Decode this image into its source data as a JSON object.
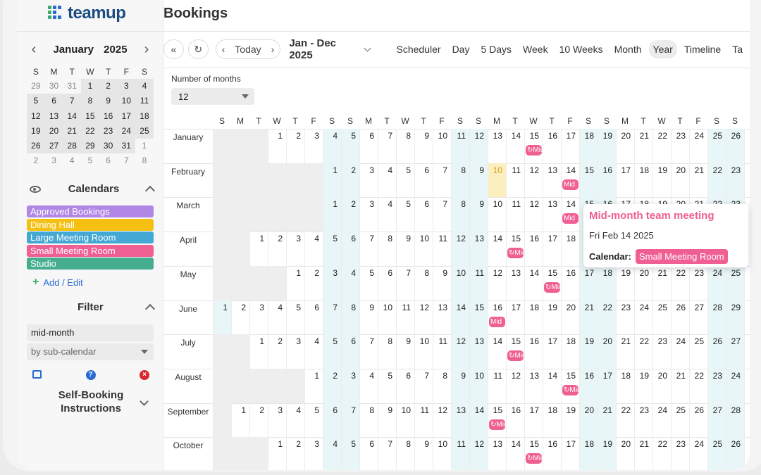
{
  "app": {
    "logo_text": "teamup",
    "page_title": "Bookings"
  },
  "mini_calendar": {
    "month": "January",
    "year": "2025",
    "dow": [
      "S",
      "M",
      "T",
      "W",
      "T",
      "F",
      "S"
    ],
    "weeks": [
      [
        {
          "d": "29",
          "o": true
        },
        {
          "d": "30",
          "o": true
        },
        {
          "d": "31",
          "o": true
        },
        {
          "d": "1"
        },
        {
          "d": "2"
        },
        {
          "d": "3"
        },
        {
          "d": "4"
        }
      ],
      [
        {
          "d": "5"
        },
        {
          "d": "6"
        },
        {
          "d": "7"
        },
        {
          "d": "8"
        },
        {
          "d": "9"
        },
        {
          "d": "10"
        },
        {
          "d": "11"
        }
      ],
      [
        {
          "d": "12"
        },
        {
          "d": "13"
        },
        {
          "d": "14"
        },
        {
          "d": "15"
        },
        {
          "d": "16"
        },
        {
          "d": "17"
        },
        {
          "d": "18"
        }
      ],
      [
        {
          "d": "19"
        },
        {
          "d": "20"
        },
        {
          "d": "21"
        },
        {
          "d": "22"
        },
        {
          "d": "23"
        },
        {
          "d": "24"
        },
        {
          "d": "25"
        }
      ],
      [
        {
          "d": "26"
        },
        {
          "d": "27"
        },
        {
          "d": "28"
        },
        {
          "d": "29"
        },
        {
          "d": "30"
        },
        {
          "d": "31"
        },
        {
          "d": "1",
          "o": true
        }
      ],
      [
        {
          "d": "2",
          "o": true
        },
        {
          "d": "3",
          "o": true
        },
        {
          "d": "4",
          "o": true
        },
        {
          "d": "5",
          "o": true
        },
        {
          "d": "6",
          "o": true
        },
        {
          "d": "7",
          "o": true
        },
        {
          "d": "8",
          "o": true
        }
      ]
    ]
  },
  "calendars": {
    "title": "Calendars",
    "items": [
      {
        "label": "Approved Bookings",
        "color": "#b187e6"
      },
      {
        "label": "Dining Hall",
        "color": "#f5c012"
      },
      {
        "label": "Large Meeting Room",
        "color": "#44a8d4"
      },
      {
        "label": "Small Meeting Room",
        "color": "#ef5f92"
      },
      {
        "label": "Studio",
        "color": "#46ad8f"
      }
    ],
    "add_edit": "Add / Edit"
  },
  "filter": {
    "title": "Filter",
    "value": "mid-month",
    "select_placeholder": "by sub-calendar"
  },
  "self_booking": "Self-Booking Instructions",
  "toolbar": {
    "today": "Today",
    "range": "Jan - Dec 2025",
    "views": [
      "Scheduler",
      "Day",
      "5 Days",
      "Week",
      "10 Weeks",
      "Month",
      "Year",
      "Timeline",
      "Ta"
    ],
    "active_view": "Year"
  },
  "months_option": {
    "label": "Number of months",
    "value": "12"
  },
  "year_view": {
    "dow_header": [
      "S",
      "M",
      "T",
      "W",
      "T",
      "F",
      "S",
      "S",
      "M",
      "T",
      "W",
      "T",
      "F",
      "S",
      "S",
      "M",
      "T",
      "W",
      "T",
      "F",
      "S",
      "S",
      "M",
      "T",
      "W",
      "T",
      "F",
      "S",
      "S",
      "M",
      "T",
      "W",
      "T",
      "F",
      "S"
    ],
    "months": [
      {
        "name": "January",
        "offset": 3,
        "days": 31
      },
      {
        "name": "February",
        "offset": 6,
        "days": 28
      },
      {
        "name": "March",
        "offset": 6,
        "days": 31
      },
      {
        "name": "April",
        "offset": 2,
        "days": 30
      },
      {
        "name": "May",
        "offset": 4,
        "days": 31
      },
      {
        "name": "June",
        "offset": 0,
        "days": 30
      },
      {
        "name": "July",
        "offset": 2,
        "days": 31
      },
      {
        "name": "August",
        "offset": 5,
        "days": 31
      },
      {
        "name": "September",
        "offset": 1,
        "days": 30
      },
      {
        "name": "October",
        "offset": 3,
        "days": 31
      }
    ],
    "today": {
      "month": 1,
      "day": 10
    },
    "events": [
      {
        "month": 0,
        "day": 15,
        "label": "Mid",
        "recurring": true
      },
      {
        "month": 1,
        "day": 14,
        "label": "Mid",
        "recurring": false
      },
      {
        "month": 2,
        "day": 14,
        "label": "Mid",
        "recurring": false
      },
      {
        "month": 3,
        "day": 15,
        "label": "Mid",
        "recurring": true
      },
      {
        "month": 4,
        "day": 15,
        "label": "Mid",
        "recurring": true
      },
      {
        "month": 5,
        "day": 16,
        "label": "Mid",
        "recurring": false
      },
      {
        "month": 6,
        "day": 15,
        "label": "Mid",
        "recurring": true
      },
      {
        "month": 7,
        "day": 15,
        "label": "Mid",
        "recurring": true
      },
      {
        "month": 8,
        "day": 15,
        "label": "Mid",
        "recurring": true
      },
      {
        "month": 9,
        "day": 15,
        "label": "Mid",
        "recurring": true
      }
    ]
  },
  "tooltip": {
    "title": "Mid-month team meeting",
    "date": "Fri Feb 14 2025",
    "calendar_label": "Calendar:",
    "calendar_value": "Small Meeting Room"
  }
}
